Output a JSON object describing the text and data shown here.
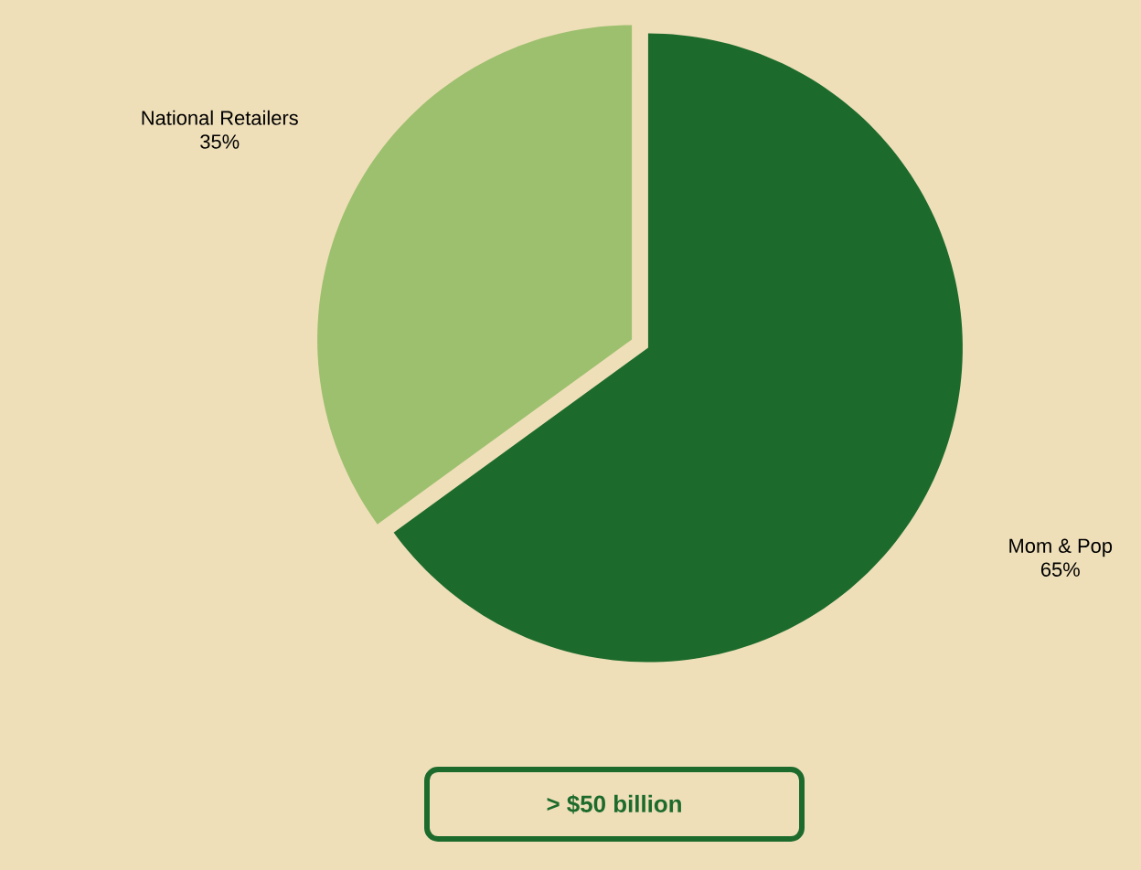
{
  "chart_data": {
    "type": "pie",
    "categories": [
      "National Retailers",
      "Mom & Pop"
    ],
    "values": [
      35,
      65
    ],
    "value_labels": [
      "35%",
      "65%"
    ],
    "colors": [
      "#9dc06e",
      "#1d6b2c"
    ],
    "annotations": [
      "> $50 billion"
    ]
  }
}
